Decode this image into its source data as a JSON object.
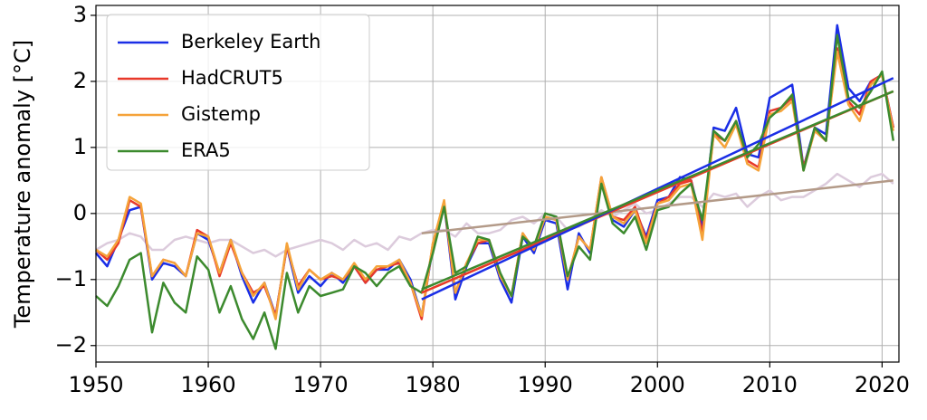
{
  "chart_data": {
    "type": "line",
    "ylabel": "Temperature anomaly [°C]",
    "x": [
      1950,
      1951,
      1952,
      1953,
      1954,
      1955,
      1956,
      1957,
      1958,
      1959,
      1960,
      1961,
      1962,
      1963,
      1964,
      1965,
      1966,
      1967,
      1968,
      1969,
      1970,
      1971,
      1972,
      1973,
      1974,
      1975,
      1976,
      1977,
      1978,
      1979,
      1980,
      1981,
      1982,
      1983,
      1984,
      1985,
      1986,
      1987,
      1988,
      1989,
      1990,
      1991,
      1992,
      1993,
      1994,
      1995,
      1996,
      1997,
      1998,
      1999,
      2000,
      2001,
      2002,
      2003,
      2004,
      2005,
      2006,
      2007,
      2008,
      2009,
      2010,
      2011,
      2012,
      2013,
      2014,
      2015,
      2016,
      2017,
      2018,
      2019,
      2020,
      2021
    ],
    "background": {
      "color": "#dccbdc",
      "values": [
        -0.55,
        -0.45,
        -0.4,
        -0.3,
        -0.35,
        -0.55,
        -0.55,
        -0.4,
        -0.35,
        -0.4,
        -0.45,
        -0.4,
        -0.4,
        -0.5,
        -0.6,
        -0.55,
        -0.65,
        -0.55,
        -0.5,
        -0.45,
        -0.4,
        -0.45,
        -0.55,
        -0.4,
        -0.5,
        -0.45,
        -0.55,
        -0.35,
        -0.4,
        -0.3,
        -0.25,
        -0.25,
        -0.35,
        -0.15,
        -0.3,
        -0.3,
        -0.25,
        -0.1,
        -0.05,
        -0.15,
        0.0,
        -0.05,
        -0.25,
        -0.2,
        -0.1,
        0.05,
        -0.05,
        0.05,
        0.15,
        0.0,
        0.05,
        0.15,
        0.25,
        0.25,
        0.1,
        0.3,
        0.25,
        0.3,
        0.1,
        0.25,
        0.35,
        0.2,
        0.25,
        0.25,
        0.35,
        0.45,
        0.6,
        0.5,
        0.4,
        0.55,
        0.6,
        0.45
      ]
    },
    "series": [
      {
        "name": "Berkeley Earth",
        "color": "#1a2ee6",
        "values": [
          -0.6,
          -0.8,
          -0.4,
          0.05,
          0.1,
          -1.0,
          -0.75,
          -0.8,
          -0.95,
          -0.3,
          -0.4,
          -0.9,
          -0.4,
          -0.95,
          -1.35,
          -1.05,
          -1.55,
          -0.5,
          -1.2,
          -0.95,
          -1.1,
          -0.9,
          -1.05,
          -0.8,
          -1.05,
          -0.85,
          -0.85,
          -0.7,
          -1.0,
          -1.55,
          -0.5,
          0.15,
          -1.3,
          -0.8,
          -0.45,
          -0.45,
          -1.0,
          -1.35,
          -0.35,
          -0.6,
          -0.1,
          -0.15,
          -1.15,
          -0.3,
          -0.6,
          0.5,
          -0.1,
          -0.2,
          0.05,
          -0.35,
          0.2,
          0.25,
          0.55,
          0.5,
          -0.2,
          1.3,
          1.25,
          1.6,
          0.9,
          0.85,
          1.75,
          1.85,
          1.95,
          0.7,
          1.3,
          1.2,
          2.85,
          1.9,
          1.7,
          2.0,
          2.1,
          1.3
        ]
      },
      {
        "name": "HadCRUT5",
        "color": "#e8392a",
        "values": [
          -0.55,
          -0.7,
          -0.45,
          0.2,
          0.1,
          -0.95,
          -0.7,
          -0.75,
          -0.95,
          -0.25,
          -0.35,
          -0.95,
          -0.45,
          -0.9,
          -1.2,
          -1.1,
          -1.55,
          -0.5,
          -1.1,
          -0.85,
          -1.0,
          -0.95,
          -1.0,
          -0.8,
          -1.05,
          -0.85,
          -0.8,
          -0.75,
          -1.05,
          -1.6,
          -0.45,
          0.15,
          -1.2,
          -0.75,
          -0.45,
          -0.4,
          -0.95,
          -1.25,
          -0.3,
          -0.55,
          -0.05,
          -0.1,
          -1.0,
          -0.35,
          -0.55,
          0.55,
          -0.05,
          -0.1,
          0.1,
          -0.4,
          0.15,
          0.25,
          0.45,
          0.5,
          -0.3,
          1.2,
          1.1,
          1.4,
          0.8,
          0.7,
          1.55,
          1.6,
          1.75,
          0.7,
          1.25,
          1.1,
          2.5,
          1.7,
          1.5,
          2.0,
          2.1,
          1.3
        ]
      },
      {
        "name": "Gistemp",
        "color": "#f5a33a",
        "values": [
          -0.55,
          -0.65,
          -0.4,
          0.25,
          0.15,
          -0.95,
          -0.7,
          -0.75,
          -0.95,
          -0.3,
          -0.35,
          -0.9,
          -0.4,
          -0.9,
          -1.25,
          -1.05,
          -1.6,
          -0.45,
          -1.15,
          -0.85,
          -1.0,
          -0.9,
          -1.0,
          -0.75,
          -1.0,
          -0.8,
          -0.8,
          -0.7,
          -1.05,
          -1.55,
          -0.45,
          0.2,
          -1.2,
          -0.75,
          -0.4,
          -0.4,
          -0.95,
          -1.25,
          -0.3,
          -0.55,
          -0.05,
          -0.1,
          -1.0,
          -0.35,
          -0.55,
          0.55,
          -0.05,
          -0.15,
          0.05,
          -0.45,
          0.15,
          0.2,
          0.4,
          0.45,
          -0.4,
          1.2,
          1.0,
          1.35,
          0.75,
          0.65,
          1.5,
          1.55,
          1.7,
          0.65,
          1.25,
          1.1,
          2.45,
          1.65,
          1.4,
          1.95,
          2.1,
          1.25
        ]
      },
      {
        "name": "ERA5",
        "color": "#3c8a2e",
        "values": [
          -1.25,
          -1.4,
          -1.1,
          -0.7,
          -0.6,
          -1.8,
          -1.05,
          -1.35,
          -1.5,
          -0.65,
          -0.85,
          -1.5,
          -1.1,
          -1.6,
          -1.9,
          -1.5,
          -2.05,
          -0.9,
          -1.5,
          -1.1,
          -1.25,
          -1.2,
          -1.15,
          -0.8,
          -0.9,
          -1.1,
          -0.9,
          -0.8,
          -1.1,
          -1.2,
          -0.6,
          0.1,
          -0.9,
          -0.8,
          -0.35,
          -0.4,
          -0.9,
          -1.25,
          -0.35,
          -0.5,
          0.0,
          -0.05,
          -0.95,
          -0.5,
          -0.7,
          0.45,
          -0.15,
          -0.3,
          -0.05,
          -0.55,
          0.05,
          0.1,
          0.3,
          0.45,
          -0.1,
          1.25,
          1.1,
          1.4,
          0.85,
          1.05,
          1.45,
          1.6,
          1.8,
          0.65,
          1.3,
          1.1,
          2.7,
          1.75,
          1.6,
          1.85,
          2.15,
          1.1
        ]
      }
    ],
    "trends": [
      {
        "color": "#b39a88",
        "x": [
          1979,
          2021
        ],
        "values": [
          -0.3,
          0.5
        ]
      },
      {
        "color": "#f5a33a",
        "x": [
          1979,
          2021
        ],
        "values": [
          -1.2,
          1.85
        ]
      },
      {
        "color": "#e8392a",
        "x": [
          1979,
          2021
        ],
        "values": [
          -1.2,
          1.85
        ]
      },
      {
        "color": "#1a2ee6",
        "x": [
          1979,
          2021
        ],
        "values": [
          -1.3,
          2.05
        ]
      },
      {
        "color": "#3c8a2e",
        "x": [
          1979,
          2021
        ],
        "values": [
          -1.15,
          1.85
        ]
      }
    ],
    "xlim": [
      1950,
      2021.5
    ],
    "ylim": [
      -2.25,
      3.15
    ],
    "xticks": [
      1950,
      1960,
      1970,
      1980,
      1990,
      2000,
      2010,
      2020
    ],
    "yticks": [
      {
        "value": -2,
        "label": "−2"
      },
      {
        "value": -1,
        "label": "−1"
      },
      0,
      1,
      2,
      3
    ],
    "grid": true,
    "legend": "upper left"
  }
}
